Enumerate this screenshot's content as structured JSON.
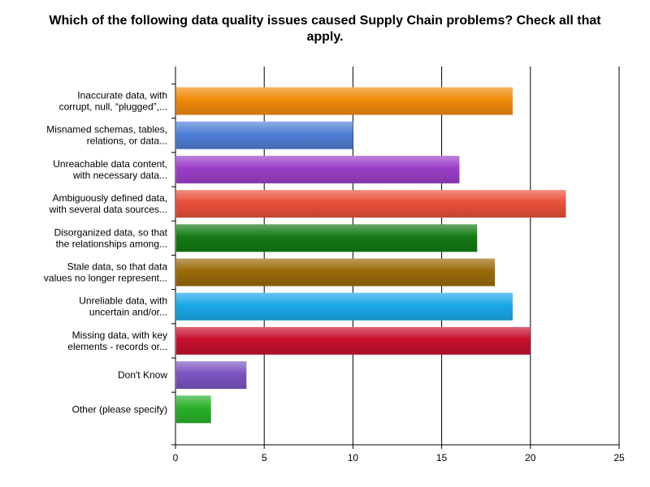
{
  "chart_data": {
    "type": "bar",
    "orientation": "horizontal",
    "title": "Which of the following data quality issues caused Supply Chain problems? Check all that apply.",
    "xlabel": "",
    "ylabel": "",
    "xlim": [
      0,
      25
    ],
    "ticks": [
      0,
      5,
      10,
      15,
      20,
      25
    ],
    "grid": true,
    "categories": [
      [
        "Inaccurate data, with",
        "corrupt, null, “plugged”,..."
      ],
      [
        "Misnamed schemas, tables,",
        "relations, or data..."
      ],
      [
        "Unreachable data content,",
        "with necessary data..."
      ],
      [
        "Ambiguously defined data,",
        "with several data sources..."
      ],
      [
        "Disorganized data, so that",
        "the relationships among..."
      ],
      [
        "Stale data, so that data",
        "values no longer represent..."
      ],
      [
        "Unreliable data, with",
        "uncertain and/or..."
      ],
      [
        "Missing data, with key",
        "elements - records  or..."
      ],
      [
        "Don't Know"
      ],
      [
        "Other (please specify)"
      ]
    ],
    "values": [
      19,
      10,
      16,
      22,
      17,
      18,
      19,
      20,
      4,
      2
    ],
    "colors": [
      "#f08a0a",
      "#4f7fd6",
      "#9b3fc8",
      "#e8503a",
      "#157a15",
      "#9a6a0a",
      "#1aa8e8",
      "#c8102e",
      "#7a55c0",
      "#2ab02a"
    ]
  }
}
